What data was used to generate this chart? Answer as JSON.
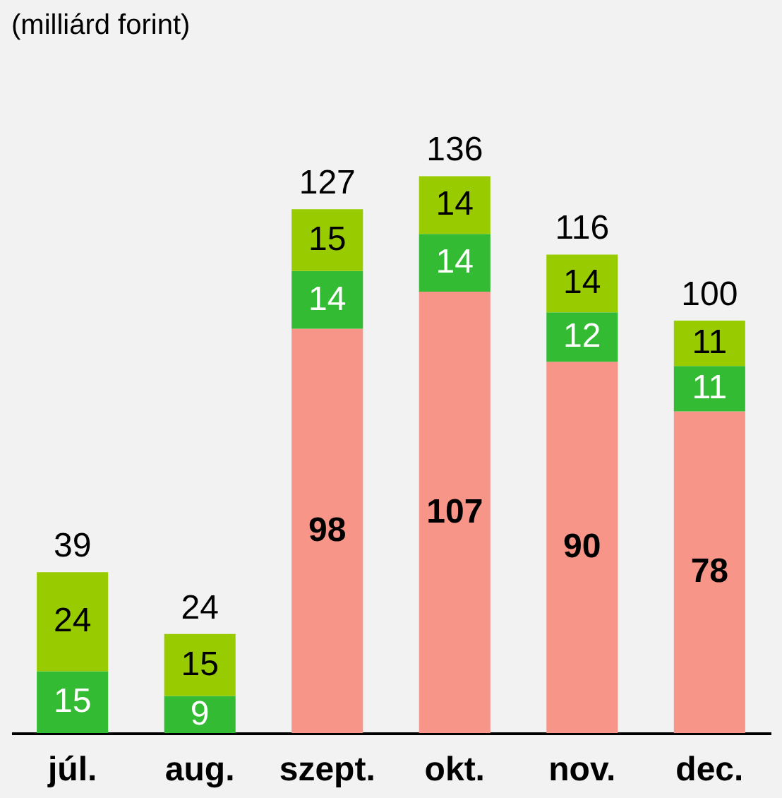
{
  "chart_data": {
    "type": "bar",
    "stacked": true,
    "subtitle": "(milliárd forint)",
    "categories": [
      "júl.",
      "aug.",
      "szept.",
      "okt.",
      "nov.",
      "dec."
    ],
    "series": [
      {
        "color": "#f79588",
        "values": [
          null,
          null,
          98,
          107,
          90,
          78
        ]
      },
      {
        "color": "#33bb33",
        "values": [
          15,
          9,
          14,
          14,
          12,
          11
        ]
      },
      {
        "color": "#99cc00",
        "values": [
          24,
          15,
          15,
          14,
          14,
          11
        ]
      }
    ],
    "totals": [
      "39",
      "24",
      "127",
      "136",
      "116",
      "100"
    ],
    "data_labels": true,
    "grid": false
  }
}
